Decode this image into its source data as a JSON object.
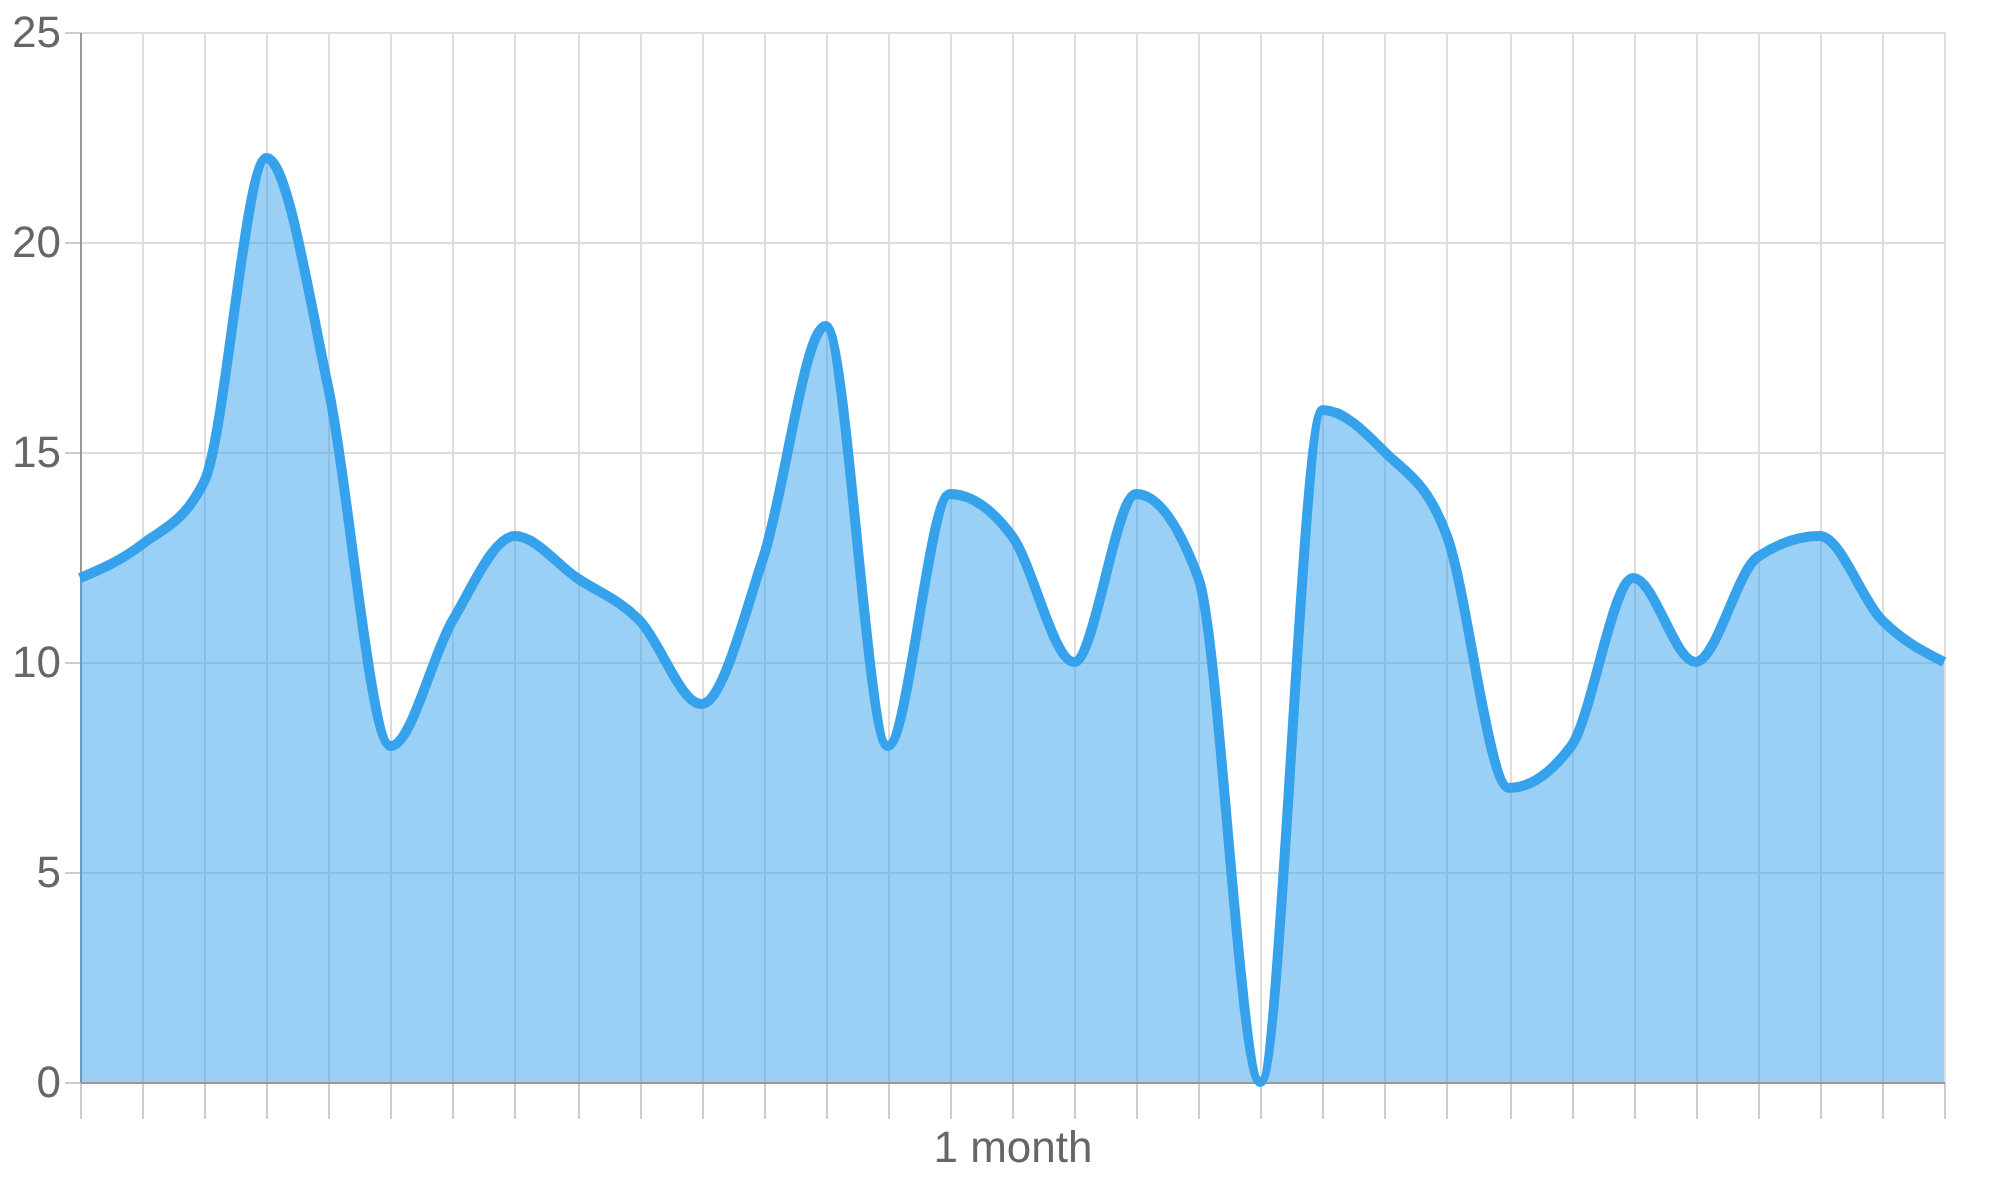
{
  "chart_data": {
    "type": "area",
    "xlabel": "1 month",
    "categories": [
      null,
      null,
      null,
      null,
      null,
      null,
      null,
      null,
      null,
      null,
      null,
      null,
      null,
      null,
      null,
      null,
      null,
      null,
      null,
      null,
      null,
      null,
      null,
      null,
      null,
      null,
      null,
      null,
      null,
      null,
      null
    ],
    "series": [
      {
        "color": "#36a2eb",
        "values": [
          12,
          12.8,
          14.3,
          22,
          16.5,
          8,
          11,
          13,
          12,
          11,
          9,
          12.5,
          18,
          8,
          14,
          13,
          10,
          14,
          12,
          0,
          16,
          15,
          13,
          7,
          8,
          12,
          10,
          12.5,
          13,
          11,
          10
        ]
      }
    ],
    "ylim": [
      0,
      25
    ],
    "yticks": [
      0,
      5,
      10,
      15,
      20,
      25
    ],
    "grid": true,
    "tick_labels": "y",
    "line_style": "solid",
    "marker": "none"
  }
}
